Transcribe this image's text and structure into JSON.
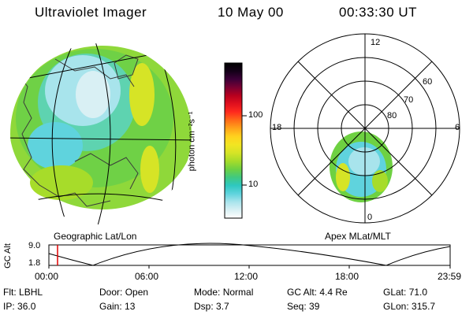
{
  "header": {
    "instrument": "Ultraviolet Imager",
    "date": "10 May 00",
    "time": "00:33:30 UT"
  },
  "left_panel": {
    "caption": "Geographic Lat/Lon"
  },
  "right_panel": {
    "caption": "Apex MLat/MLT",
    "mlt_labels": {
      "top": "12",
      "bottom": "0",
      "left": "18",
      "right": "6"
    },
    "lat_labels": [
      "60",
      "70",
      "80"
    ]
  },
  "colorbar": {
    "unit_label": "photon cm⁻²s⁻¹",
    "tick_100": "100",
    "tick_10": "10",
    "colors": [
      "#ffffff",
      "#d9f0f4",
      "#a8e4ec",
      "#5fd3dd",
      "#2ec8c0",
      "#41c980",
      "#6ed142",
      "#a7dc2a",
      "#d6e426",
      "#f2e522",
      "#ffd21e",
      "#ffa31a",
      "#ff6a18",
      "#ff2a1e",
      "#e0101e",
      "#b8001e",
      "#7a0032",
      "#3c0038",
      "#140018",
      "#000000"
    ]
  },
  "altitude_plot": {
    "ylabel": "GC Alt",
    "ytick_top": "9.0",
    "ytick_bottom": "1.8",
    "xticks": [
      "00:00",
      "06:00",
      "12:00",
      "18:00",
      "23:59"
    ]
  },
  "footer": {
    "row1": [
      {
        "key": "Flt:",
        "value": "LBHL"
      },
      {
        "key": "Door:",
        "value": "Open"
      },
      {
        "key": "Mode:",
        "value": "Normal"
      },
      {
        "key": "GC Alt:",
        "value": "4.4 Re"
      },
      {
        "key": "GLat:",
        "value": "71.0"
      }
    ],
    "row2": [
      {
        "key": "IP:",
        "value": "36.0"
      },
      {
        "key": "Gain:",
        "value": "13"
      },
      {
        "key": "Dsp:",
        "value": "3.7"
      },
      {
        "key": "Seq:",
        "value": "39"
      },
      {
        "key": "GLon:",
        "value": "315.7"
      }
    ]
  }
}
